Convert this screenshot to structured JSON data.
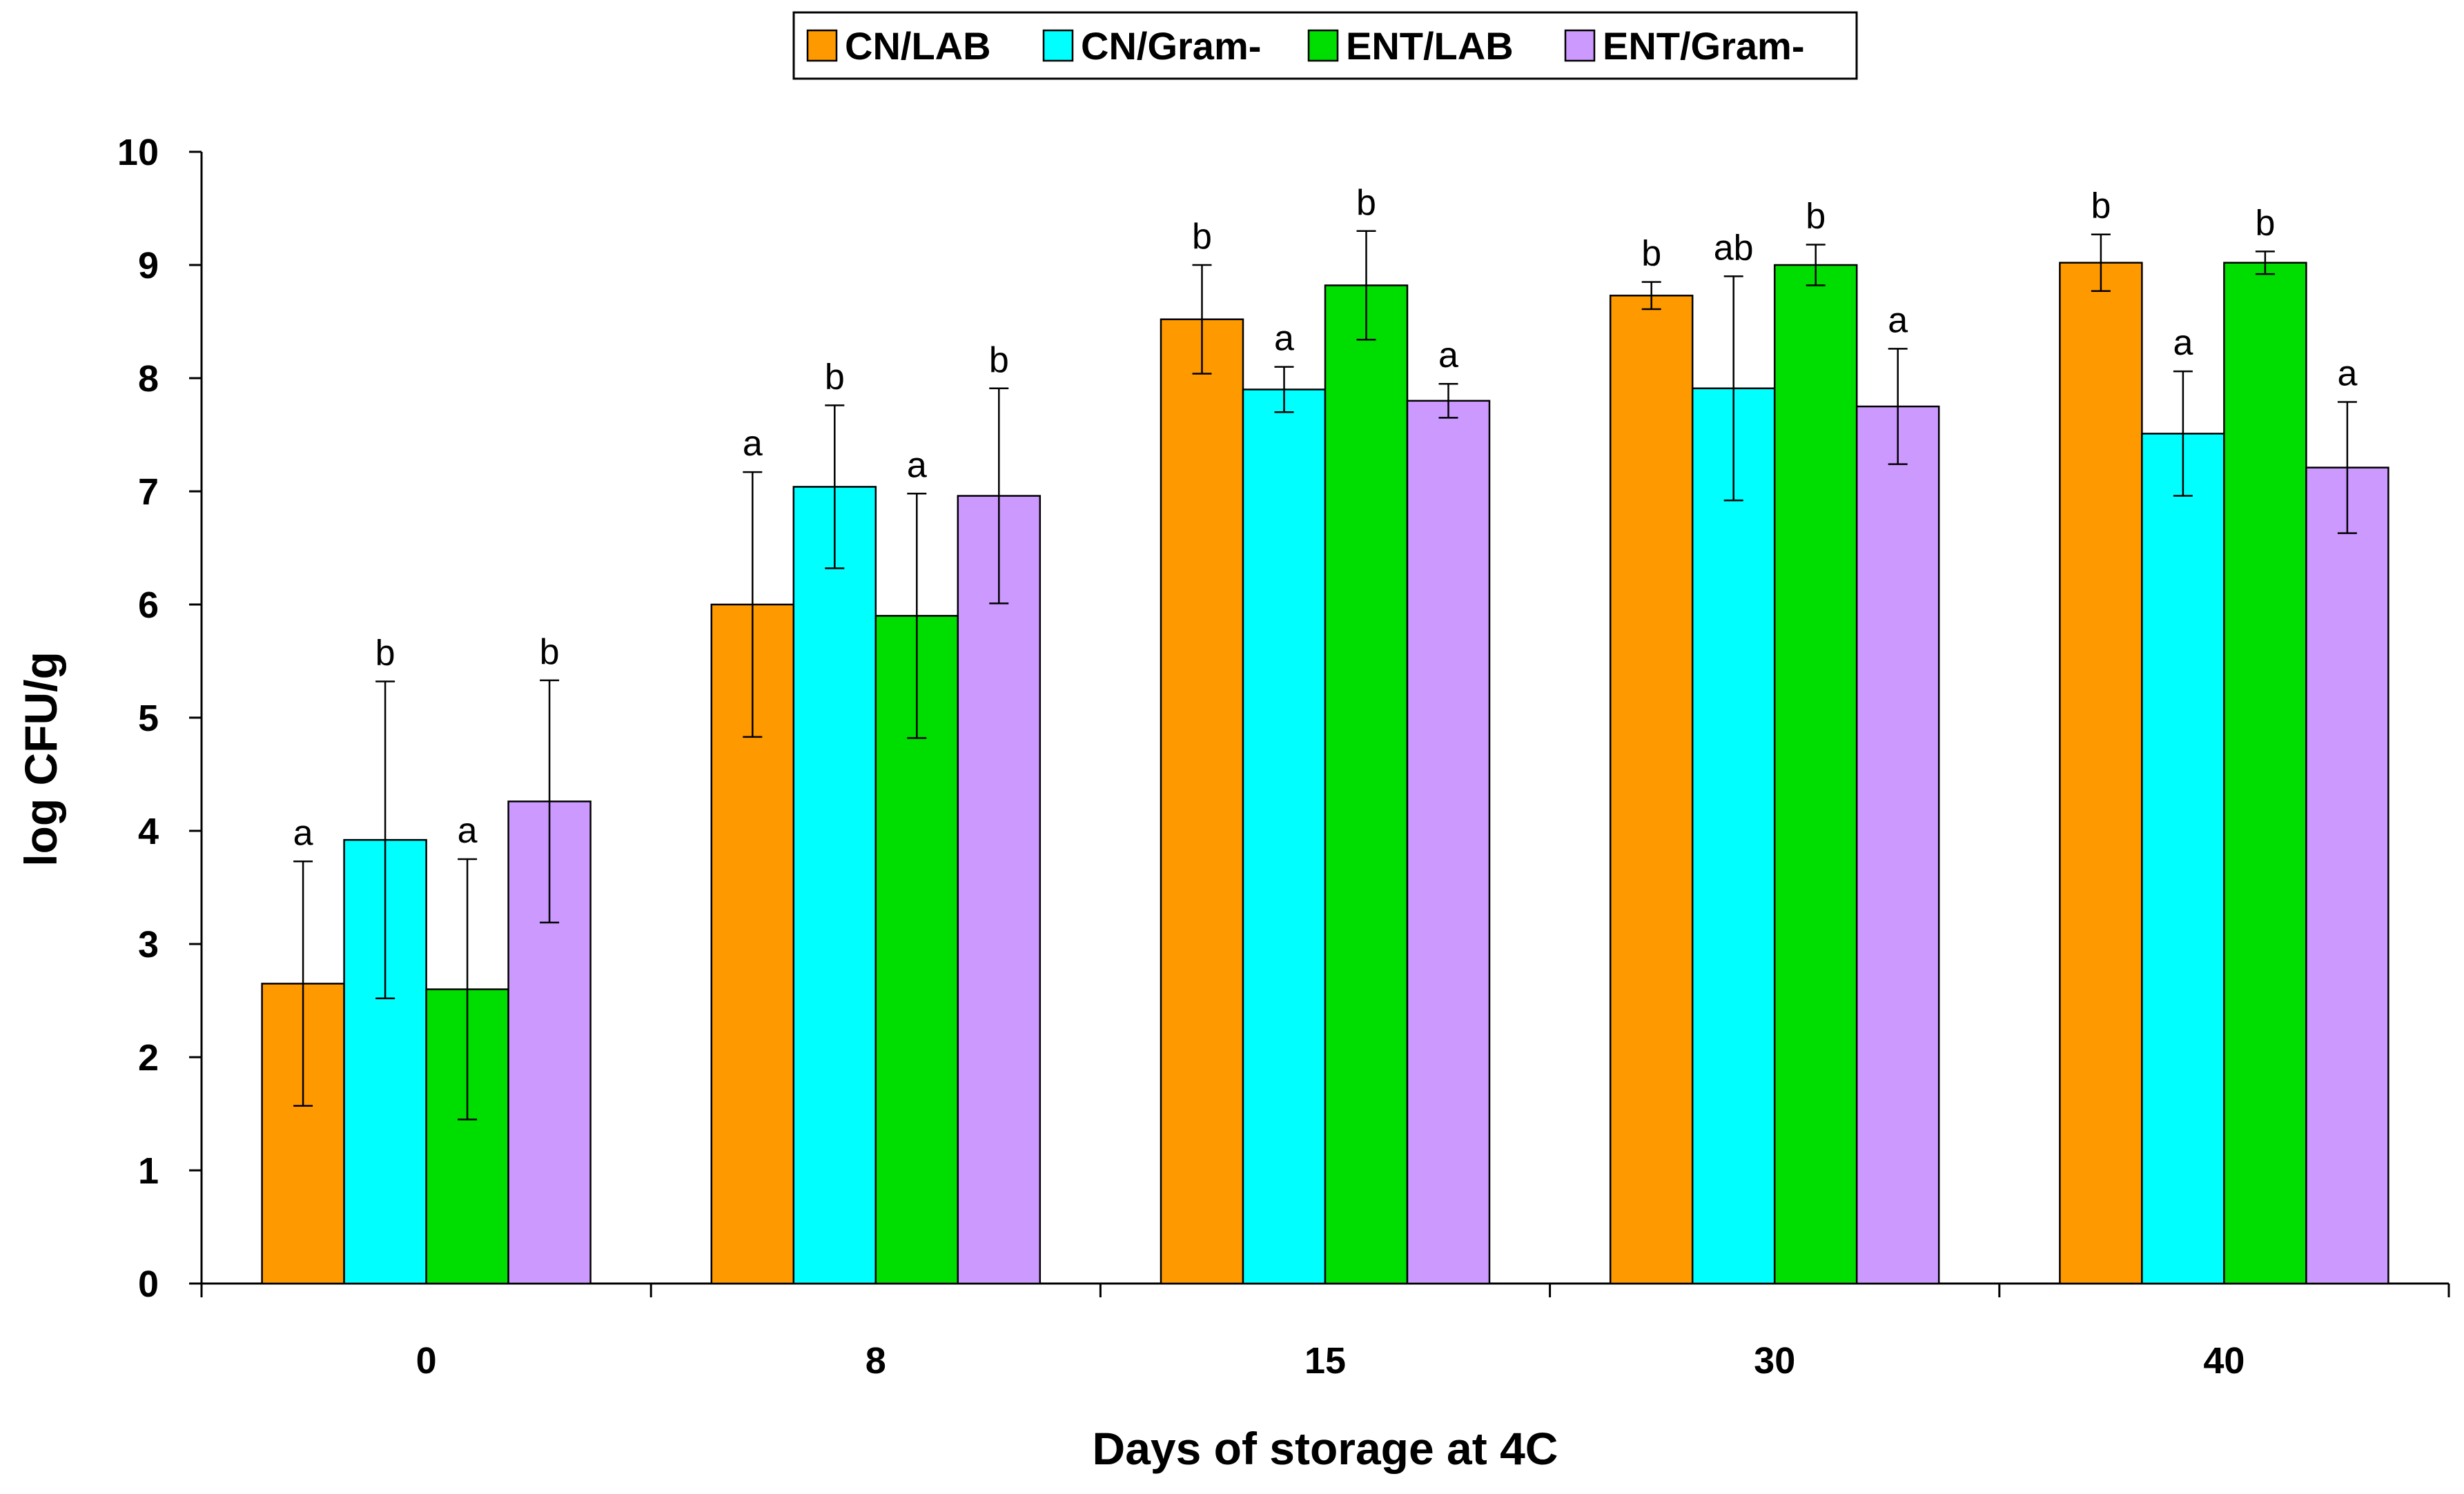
{
  "chart_data": {
    "type": "bar",
    "title": "",
    "xlabel": "Days of storage at 4C",
    "ylabel": "log CFU/g",
    "ylim": [
      0,
      10
    ],
    "yticks": [
      0,
      1,
      2,
      3,
      4,
      5,
      6,
      7,
      8,
      9,
      10
    ],
    "grid": false,
    "legend_position": "top-center",
    "categories": [
      "0",
      "8",
      "15",
      "30",
      "40"
    ],
    "series": [
      {
        "name": "CN/LAB",
        "color": "#ff9900",
        "values": [
          2.65,
          6.0,
          8.52,
          8.73,
          9.02
        ],
        "errors": [
          1.08,
          1.17,
          0.48,
          0.12,
          0.25
        ],
        "labels": [
          "a",
          "a",
          "b",
          "b",
          "b"
        ]
      },
      {
        "name": "CN/Gram-",
        "color": "#00ffff",
        "values": [
          3.92,
          7.04,
          7.9,
          7.91,
          7.51
        ],
        "errors": [
          1.4,
          0.72,
          0.2,
          0.99,
          0.55
        ],
        "labels": [
          "b",
          "b",
          "a",
          "ab",
          "a"
        ]
      },
      {
        "name": "ENT/LAB",
        "color": "#00dd00",
        "values": [
          2.6,
          5.9,
          8.82,
          9.0,
          9.02
        ],
        "errors": [
          1.15,
          1.08,
          0.48,
          0.18,
          0.1
        ],
        "labels": [
          "a",
          "a",
          "b",
          "b",
          "b"
        ]
      },
      {
        "name": "ENT/Gram-",
        "color": "#cc99ff",
        "values": [
          4.26,
          6.96,
          7.8,
          7.75,
          7.21
        ],
        "errors": [
          1.07,
          0.95,
          0.15,
          0.51,
          0.58
        ],
        "labels": [
          "b",
          "b",
          "a",
          "a",
          "a"
        ]
      }
    ]
  }
}
